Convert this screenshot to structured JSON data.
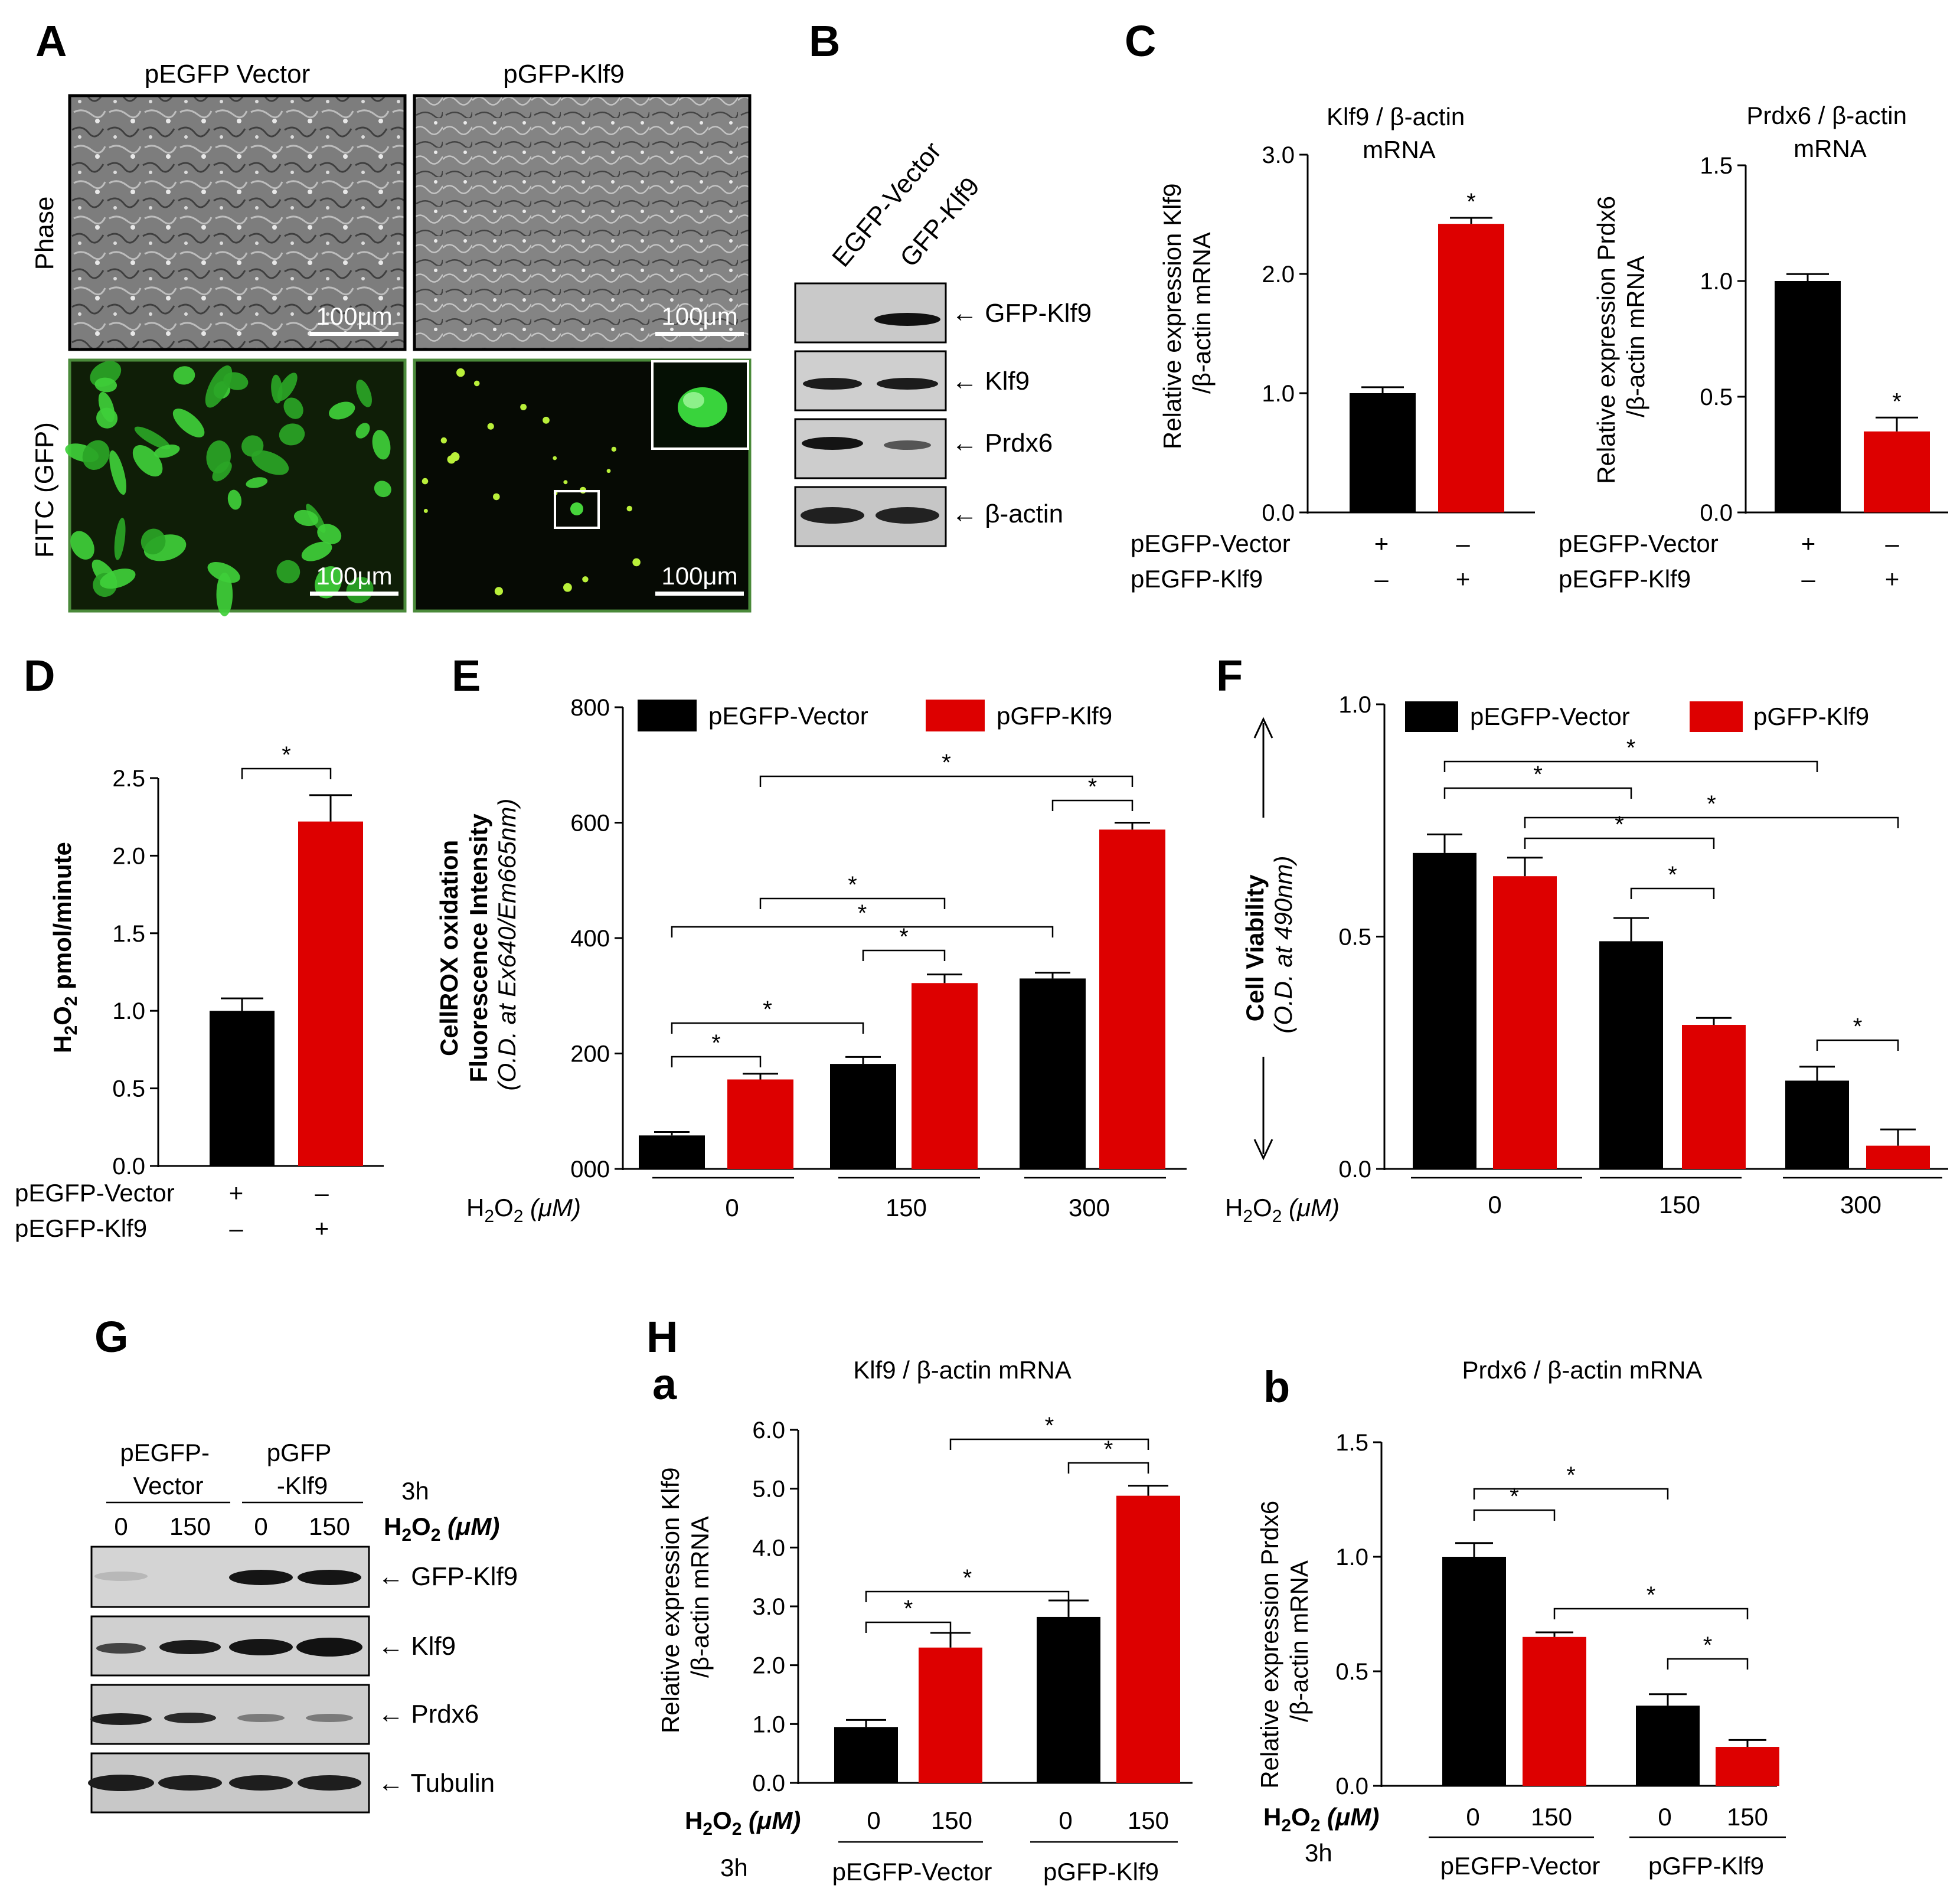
{
  "panel_labels": {
    "A": "A",
    "B": "B",
    "C": "C",
    "D": "D",
    "E": "E",
    "F": "F",
    "G": "G",
    "H": "H",
    "Ha": "a",
    "Hb": "b"
  },
  "panel_A": {
    "col_titles": [
      "pEGFP Vector",
      "pGFP-Klf9"
    ],
    "row_labels": [
      "Phase",
      "FITC (GFP)"
    ],
    "scale_bar": "100μm"
  },
  "panel_B": {
    "lanes": [
      "EGFP-Vector",
      "GFP-Klf9"
    ],
    "bands": [
      "GFP-Klf9",
      "Klf9",
      "Prdx6",
      "β-actin"
    ]
  },
  "panel_C": {
    "row_labels": [
      "pEGFP-Vector",
      "pEGFP-Klf9"
    ],
    "row_signs": [
      [
        "+",
        "–"
      ],
      [
        "–",
        "+"
      ]
    ]
  },
  "panel_D": {
    "ylabel": "H2O2 pmol/minute",
    "row_labels": [
      "pEGFP-Vector",
      "pEGFP-Klf9"
    ],
    "row_signs": [
      [
        "+",
        "–"
      ],
      [
        "–",
        "+"
      ]
    ]
  },
  "panel_E": {
    "ylabel_lines": [
      "CellROX oxidation",
      "Fluorescence  Intensity",
      "(O.D. at Ex640/Em665nm)"
    ],
    "xlabel": "H2O2 (μM)"
  },
  "panel_F": {
    "ylabel_lines": [
      "Cell Viability",
      "(O.D. at 490nm)"
    ],
    "xlabel": "H2O2 (μM)"
  },
  "panel_G": {
    "lane_groups": [
      "pEGFP-\nVector",
      "pGFP\n-Klf9"
    ],
    "time": "3h",
    "lane_doses": [
      "0",
      "150",
      "0",
      "150"
    ],
    "dose_label": "H2O2 (μM)",
    "bands": [
      "GFP-Klf9",
      "Klf9",
      "Prdx6",
      "Tubulin"
    ]
  },
  "panel_H": {
    "xlabel": "H2O2 (μM)",
    "time": "3h",
    "groups": [
      "pEGFP-Vector",
      "pGFP-Klf9"
    ]
  },
  "colors": {
    "vector": "#000000",
    "klf9": "#dd0000",
    "gfp": "#33cc33",
    "micro": "#7a7a7a"
  },
  "chart_data": [
    {
      "id": "C-left",
      "type": "bar",
      "title": "Klf9 / β-actin\nmRNA",
      "ylabel": "Relative expression Klf9\n/β-actin mRNA",
      "ylim": [
        0,
        3.0
      ],
      "yticks": [
        "0.0",
        "1.0",
        "2.0",
        "3.0"
      ],
      "values": [
        1.0,
        2.42
      ],
      "errors": [
        0.05,
        0.05
      ],
      "series_colors": [
        "#000000",
        "#dd0000"
      ],
      "significance": [
        {
          "bar": 1,
          "label": "*"
        }
      ]
    },
    {
      "id": "C-right",
      "type": "bar",
      "title": "Prdx6 / β-actin\nmRNA",
      "ylabel": "Relative expression Prdx6\n/β-actin mRNA",
      "ylim": [
        0,
        1.5
      ],
      "yticks": [
        "0.0",
        "0.5",
        "1.0",
        "1.5"
      ],
      "values": [
        1.0,
        0.35
      ],
      "errors": [
        0.03,
        0.06
      ],
      "series_colors": [
        "#000000",
        "#dd0000"
      ],
      "significance": [
        {
          "bar": 1,
          "label": "*"
        }
      ]
    },
    {
      "id": "D",
      "type": "bar",
      "ylim": [
        0,
        2.5
      ],
      "yticks": [
        "0.0",
        "0.5",
        "1.0",
        "1.5",
        "2.0",
        "2.5"
      ],
      "values": [
        1.0,
        2.22
      ],
      "errors": [
        0.08,
        0.17
      ],
      "series_colors": [
        "#000000",
        "#dd0000"
      ],
      "significance": [
        {
          "from": 0,
          "to": 1,
          "label": "*"
        }
      ]
    },
    {
      "id": "E",
      "type": "bar",
      "categories": [
        "0",
        "150",
        "300"
      ],
      "series": [
        {
          "name": "pEGFP-Vector",
          "values": [
            58,
            182,
            330
          ],
          "errors": [
            6,
            12,
            10
          ]
        },
        {
          "name": "pGFP-Klf9",
          "values": [
            155,
            322,
            588
          ],
          "errors": [
            10,
            15,
            12
          ]
        }
      ],
      "ylim": [
        0,
        800
      ],
      "yticks": [
        "000",
        "200",
        "400",
        "600",
        "800"
      ],
      "legend": "top",
      "significance": [
        {
          "from": 0,
          "to": 1,
          "label": "*"
        },
        {
          "from": 0,
          "to": 2,
          "label": "*"
        },
        {
          "from": 2,
          "to": 3,
          "label": "*"
        },
        {
          "from": 0,
          "to": 4,
          "label": "*"
        },
        {
          "from": 1,
          "to": 3,
          "label": "*"
        },
        {
          "from": 4,
          "to": 5,
          "label": "*"
        },
        {
          "from": 1,
          "to": 5,
          "label": "*"
        }
      ]
    },
    {
      "id": "F",
      "type": "bar",
      "categories": [
        "0",
        "150",
        "300"
      ],
      "series": [
        {
          "name": "pEGFP-Vector",
          "values": [
            0.68,
            0.49,
            0.19
          ],
          "errors": [
            0.04,
            0.05,
            0.03
          ]
        },
        {
          "name": "pGFP-Klf9",
          "values": [
            0.63,
            0.31,
            0.05
          ],
          "errors": [
            0.04,
            0.015,
            0.035
          ]
        }
      ],
      "ylim": [
        0,
        1.0
      ],
      "yticks": [
        "0.0",
        "0.5",
        "1.0"
      ],
      "legend": "top",
      "significance": [
        {
          "from": 0,
          "to": 4,
          "label": "*"
        },
        {
          "from": 0,
          "to": 2,
          "label": "*"
        },
        {
          "from": 1,
          "to": 5,
          "label": "*"
        },
        {
          "from": 1,
          "to": 3,
          "label": "*"
        },
        {
          "from": 2,
          "to": 3,
          "label": "*"
        },
        {
          "from": 4,
          "to": 5,
          "label": "*"
        }
      ]
    },
    {
      "id": "Ha",
      "type": "bar",
      "title": "Klf9 / β-actin mRNA",
      "ylabel": "Relative expression Klf9\n/β-actin mRNA",
      "ylim": [
        0,
        6.0
      ],
      "yticks": [
        "0.0",
        "1.0",
        "2.0",
        "3.0",
        "4.0",
        "5.0",
        "6.0"
      ],
      "categories": [
        "0",
        "150",
        "0",
        "150"
      ],
      "values": [
        0.95,
        2.3,
        2.82,
        4.88
      ],
      "errors": [
        0.12,
        0.25,
        0.28,
        0.17
      ],
      "series_colors": [
        "#000000",
        "#dd0000",
        "#000000",
        "#dd0000"
      ],
      "significance": [
        {
          "from": 0,
          "to": 1,
          "label": "*"
        },
        {
          "from": 0,
          "to": 2,
          "label": "*"
        },
        {
          "from": 2,
          "to": 3,
          "label": "*"
        },
        {
          "from": 1,
          "to": 3,
          "label": "*"
        }
      ]
    },
    {
      "id": "Hb",
      "type": "bar",
      "title": "Prdx6 / β-actin mRNA",
      "ylabel": "Relative expression Prdx6\n/β-actin mRNA",
      "ylim": [
        0,
        1.5
      ],
      "yticks": [
        "0.0",
        "0.5",
        "1.0",
        "1.5"
      ],
      "categories": [
        "0",
        "150",
        "0",
        "150"
      ],
      "values": [
        1.0,
        0.65,
        0.35,
        0.17
      ],
      "errors": [
        0.06,
        0.02,
        0.05,
        0.03
      ],
      "series_colors": [
        "#000000",
        "#dd0000",
        "#000000",
        "#dd0000"
      ],
      "significance": [
        {
          "from": 0,
          "to": 1,
          "label": "*"
        },
        {
          "from": 0,
          "to": 2,
          "label": "*"
        },
        {
          "from": 1,
          "to": 3,
          "label": "*"
        },
        {
          "from": 2,
          "to": 3,
          "label": "*"
        }
      ]
    }
  ]
}
